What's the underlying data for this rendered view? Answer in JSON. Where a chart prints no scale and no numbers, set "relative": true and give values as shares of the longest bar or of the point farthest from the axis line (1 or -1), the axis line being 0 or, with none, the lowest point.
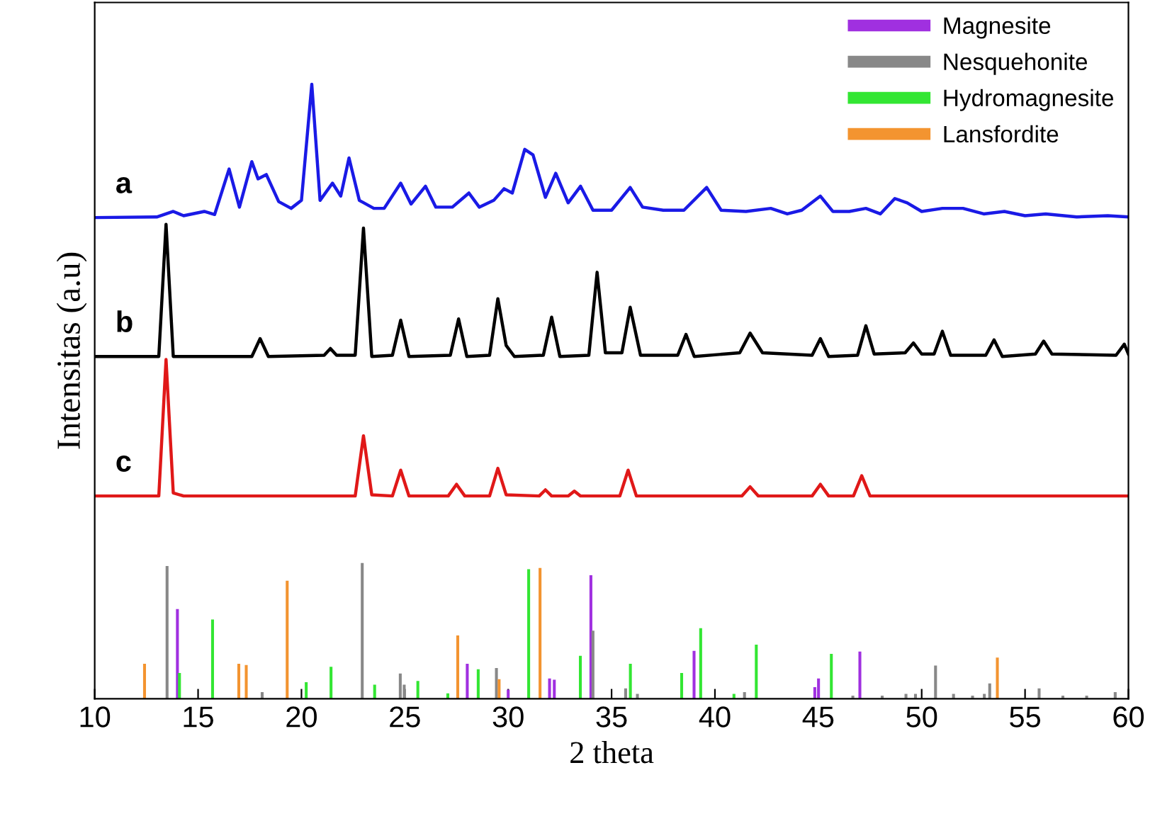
{
  "chart_data": {
    "type": "line",
    "relative": true,
    "xlabel": "2 theta",
    "ylabel": "Intensitas (a.u)",
    "xlim": [
      10,
      60
    ],
    "xticks": [
      10,
      15,
      20,
      25,
      30,
      35,
      40,
      45,
      50,
      55,
      60
    ],
    "legend": "top right",
    "grid": false,
    "marker": "none",
    "line_style": "solid",
    "series": [
      {
        "name": "a",
        "color": "#1a1ae6",
        "x": [
          10,
          13,
          13.8,
          14.3,
          15.3,
          15.8,
          16.5,
          17.0,
          17.6,
          17.9,
          18.3,
          18.9,
          19.5,
          20.0,
          20.5,
          20.9,
          21.5,
          21.9,
          22.3,
          22.8,
          23.5,
          24.0,
          24.8,
          25.3,
          26.0,
          26.5,
          27.3,
          28.1,
          28.6,
          29.3,
          29.8,
          30.2,
          30.8,
          31.2,
          31.8,
          32.3,
          32.9,
          33.5,
          34.1,
          35.0,
          35.9,
          36.5,
          37.5,
          38.5,
          39.6,
          40.3,
          41.5,
          42.7,
          43.5,
          44.2,
          45.1,
          45.7,
          46.5,
          47.3,
          48.0,
          48.7,
          49.3,
          50.0,
          51.0,
          52.0,
          53,
          54,
          55,
          56,
          57.5,
          59,
          60
        ],
        "values": [
          0.783,
          0.784,
          0.793,
          0.786,
          0.793,
          0.788,
          0.862,
          0.8,
          0.874,
          0.846,
          0.853,
          0.809,
          0.798,
          0.811,
          1.0,
          0.811,
          0.839,
          0.818,
          0.88,
          0.811,
          0.798,
          0.798,
          0.839,
          0.805,
          0.834,
          0.8,
          0.8,
          0.823,
          0.8,
          0.811,
          0.83,
          0.823,
          0.894,
          0.885,
          0.816,
          0.855,
          0.807,
          0.834,
          0.795,
          0.795,
          0.832,
          0.8,
          0.795,
          0.795,
          0.832,
          0.795,
          0.793,
          0.798,
          0.789,
          0.795,
          0.818,
          0.793,
          0.793,
          0.798,
          0.789,
          0.814,
          0.807,
          0.793,
          0.798,
          0.798,
          0.789,
          0.793,
          0.786,
          0.789,
          0.784,
          0.786,
          0.784
        ]
      },
      {
        "name": "b",
        "color": "#000000",
        "x": [
          10,
          13.1,
          13.45,
          13.8,
          17.6,
          18.0,
          18.4,
          21.1,
          21.4,
          21.7,
          22.6,
          23.0,
          23.4,
          24.4,
          24.8,
          25.2,
          27.2,
          27.6,
          28.0,
          29.1,
          29.5,
          29.9,
          30.3,
          31.7,
          32.1,
          32.5,
          33.9,
          34.3,
          34.7,
          35.5,
          35.9,
          36.4,
          38.2,
          38.6,
          39.0,
          41.2,
          41.7,
          42.3,
          44.7,
          45.1,
          45.5,
          46.9,
          47.3,
          47.7,
          49.2,
          49.6,
          50.0,
          50.6,
          51.0,
          51.4,
          53.1,
          53.5,
          53.9,
          55.5,
          55.9,
          56.3,
          59.4,
          59.8,
          60
        ],
        "values": [
          0.557,
          0.557,
          0.772,
          0.557,
          0.557,
          0.586,
          0.557,
          0.559,
          0.57,
          0.559,
          0.559,
          0.766,
          0.557,
          0.559,
          0.616,
          0.557,
          0.559,
          0.618,
          0.557,
          0.559,
          0.651,
          0.575,
          0.557,
          0.559,
          0.621,
          0.557,
          0.559,
          0.694,
          0.563,
          0.563,
          0.637,
          0.559,
          0.559,
          0.593,
          0.557,
          0.563,
          0.595,
          0.563,
          0.559,
          0.586,
          0.557,
          0.559,
          0.607,
          0.561,
          0.563,
          0.579,
          0.561,
          0.561,
          0.598,
          0.559,
          0.559,
          0.584,
          0.557,
          0.561,
          0.582,
          0.561,
          0.559,
          0.577,
          0.561
        ]
      },
      {
        "name": "c",
        "color": "#e01818",
        "x": [
          10,
          13.1,
          13.45,
          13.8,
          14.3,
          22.6,
          23.0,
          23.4,
          24.4,
          24.8,
          25.2,
          27.1,
          27.5,
          27.9,
          29.1,
          29.5,
          29.9,
          31.5,
          31.8,
          32.1,
          32.9,
          33.2,
          33.5,
          35.4,
          35.8,
          36.2,
          41.3,
          41.7,
          42.1,
          44.7,
          45.1,
          45.5,
          46.7,
          47.1,
          47.5,
          60
        ],
        "values": [
          0.33,
          0.33,
          0.552,
          0.335,
          0.33,
          0.33,
          0.428,
          0.332,
          0.33,
          0.372,
          0.33,
          0.33,
          0.349,
          0.33,
          0.33,
          0.375,
          0.332,
          0.33,
          0.34,
          0.33,
          0.33,
          0.338,
          0.33,
          0.33,
          0.372,
          0.33,
          0.33,
          0.345,
          0.33,
          0.33,
          0.349,
          0.33,
          0.33,
          0.363,
          0.33,
          0.33
        ]
      },
      {
        "name": "Magnesite",
        "color": "#a030e0",
        "type": "bar",
        "x": [
          14.0,
          28.02,
          30.0,
          32.0,
          32.23,
          34.0,
          38.99,
          44.83,
          45.01,
          47.01
        ],
        "values": [
          0.146,
          0.057,
          0.015,
          0.033,
          0.031,
          0.201,
          0.078,
          0.019,
          0.033,
          0.077
        ]
      },
      {
        "name": "Nesquehonite",
        "color": "#888888",
        "type": "bar",
        "x": [
          13.5,
          18.1,
          22.94,
          24.78,
          24.97,
          29.43,
          34.1,
          35.68,
          36.25,
          41.43,
          46.67,
          48.09,
          49.24,
          49.7,
          50.67,
          51.54,
          52.46,
          53.03,
          53.29,
          55.68,
          56.83,
          57.98,
          59.36
        ],
        "values": [
          0.216,
          0.011,
          0.221,
          0.041,
          0.023,
          0.05,
          0.111,
          0.017,
          0.008,
          0.011,
          0.005,
          0.005,
          0.008,
          0.008,
          0.054,
          0.008,
          0.005,
          0.008,
          0.025,
          0.017,
          0.005,
          0.005,
          0.011
        ]
      },
      {
        "name": "Hydromagnesite",
        "color": "#33e633",
        "type": "bar",
        "x": [
          14.1,
          15.7,
          20.23,
          21.43,
          23.54,
          25.63,
          27.08,
          28.55,
          30.99,
          33.49,
          35.91,
          38.39,
          39.31,
          40.92,
          42.0,
          45.63
        ],
        "values": [
          0.042,
          0.129,
          0.027,
          0.052,
          0.023,
          0.029,
          0.009,
          0.048,
          0.211,
          0.07,
          0.057,
          0.042,
          0.115,
          0.008,
          0.088,
          0.073
        ]
      },
      {
        "name": "Lansfordite",
        "color": "#f39430",
        "type": "bar",
        "x": [
          12.41,
          16.97,
          17.33,
          19.31,
          27.56,
          29.56,
          31.54,
          53.66
        ],
        "values": [
          0.057,
          0.057,
          0.055,
          0.192,
          0.103,
          0.032,
          0.213,
          0.067
        ]
      }
    ]
  }
}
